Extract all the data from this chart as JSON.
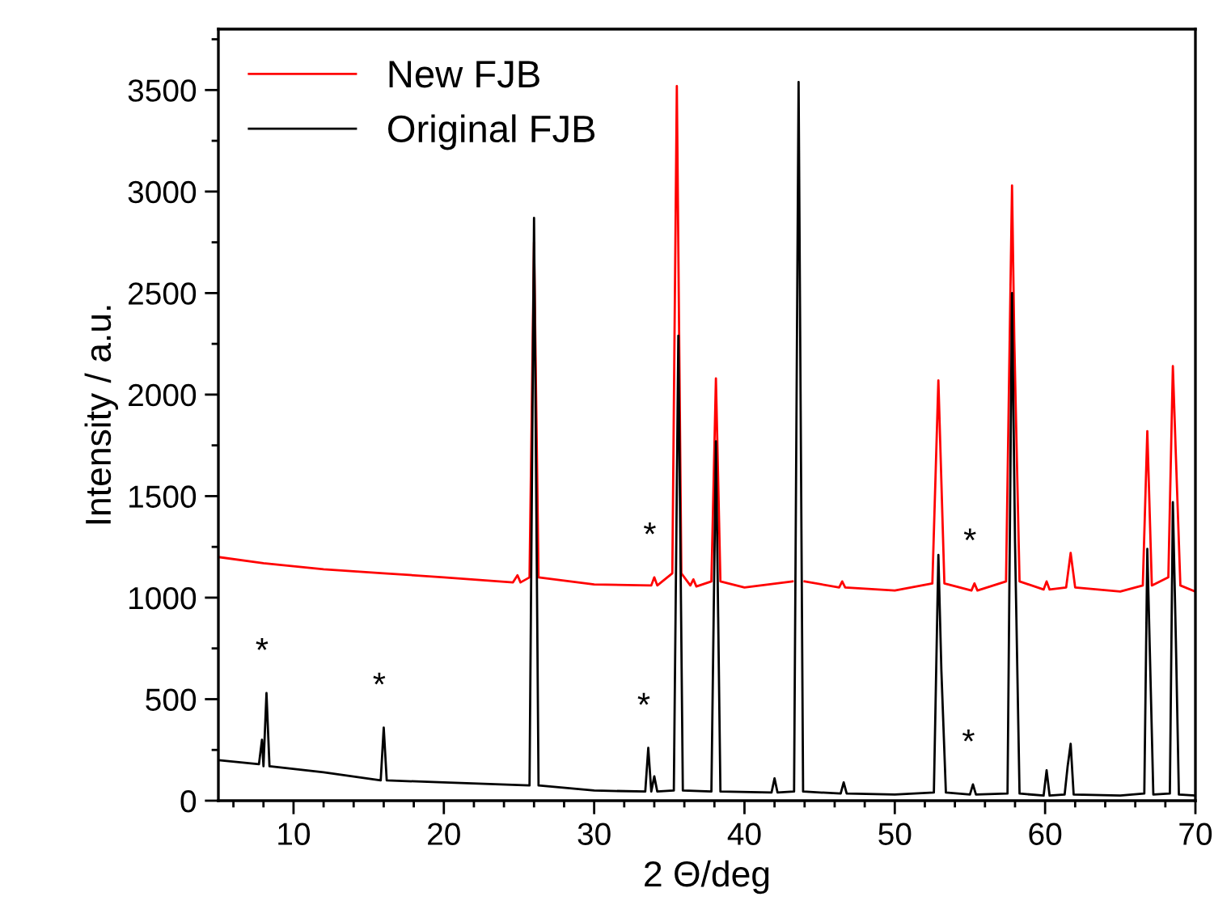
{
  "chart_data": {
    "type": "line",
    "xlabel": "2 Θ/deg",
    "ylabel": "Intensity / a.u.",
    "xlim": [
      5,
      70
    ],
    "ylim": [
      0,
      3800
    ],
    "xticks": [
      {
        "value": 6,
        "label": null
      },
      {
        "value": 8,
        "label": null
      },
      10,
      {
        "value": 12,
        "label": null
      },
      {
        "value": 14,
        "label": null
      },
      {
        "value": 16,
        "label": null
      },
      {
        "value": 18,
        "label": null
      },
      20,
      {
        "value": 22,
        "label": null
      },
      {
        "value": 24,
        "label": null
      },
      {
        "value": 26,
        "label": null
      },
      {
        "value": 28,
        "label": null
      },
      30,
      {
        "value": 32,
        "label": null
      },
      {
        "value": 34,
        "label": null
      },
      {
        "value": 36,
        "label": null
      },
      {
        "value": 38,
        "label": null
      },
      40,
      {
        "value": 42,
        "label": null
      },
      {
        "value": 44,
        "label": null
      },
      {
        "value": 46,
        "label": null
      },
      {
        "value": 48,
        "label": null
      },
      50,
      {
        "value": 52,
        "label": null
      },
      {
        "value": 54,
        "label": null
      },
      {
        "value": 56,
        "label": null
      },
      {
        "value": 58,
        "label": null
      },
      60,
      {
        "value": 62,
        "label": null
      },
      {
        "value": 64,
        "label": null
      },
      {
        "value": 66,
        "label": null
      },
      {
        "value": 68,
        "label": null
      },
      70
    ],
    "yticks": [
      0,
      {
        "value": 250,
        "label": null
      },
      500,
      {
        "value": 750,
        "label": null
      },
      1000,
      {
        "value": 1250,
        "label": null
      },
      1500,
      {
        "value": 1750,
        "label": null
      },
      2000,
      {
        "value": 2250,
        "label": null
      },
      2500,
      {
        "value": 2750,
        "label": null
      },
      3000,
      {
        "value": 3250,
        "label": null
      },
      3500,
      {
        "value": 3750,
        "label": null
      }
    ],
    "grid": false,
    "legend": "top left",
    "marker": "none",
    "line_style": "solid",
    "series": [
      {
        "name": "New FJB",
        "color": "#ff0000",
        "x": [
          5,
          8,
          12,
          16,
          20,
          24.6,
          24.9,
          25.1,
          25.7,
          26.0,
          26.3,
          30,
          33.8,
          34.0,
          34.2,
          35.2,
          35.5,
          35.8,
          36.4,
          36.6,
          36.8,
          37.8,
          38.1,
          38.4,
          40,
          43.2,
          43.6,
          44.0,
          46.3,
          46.5,
          46.7,
          50,
          52.5,
          52.9,
          53.3,
          55.1,
          55.3,
          55.5,
          57.4,
          57.8,
          57.95,
          58.3,
          59.9,
          60.1,
          60.3,
          61.4,
          61.7,
          62.0,
          65,
          66.5,
          66.8,
          67.1,
          68.2,
          68.5,
          68.7,
          69.0,
          70
        ],
        "values": [
          1200,
          1170,
          1140,
          1120,
          1100,
          1075,
          1110,
          1075,
          1100,
          2750,
          1100,
          1065,
          1060,
          1100,
          1060,
          1120,
          3520,
          1120,
          1060,
          1090,
          1055,
          1080,
          2080,
          1080,
          1050,
          1080,
          null,
          1080,
          1050,
          1080,
          1050,
          1035,
          1070,
          2070,
          1070,
          1035,
          1070,
          1035,
          1080,
          3030,
          2270,
          1080,
          1040,
          1080,
          1040,
          1050,
          1220,
          1050,
          1030,
          1060,
          1820,
          1060,
          1100,
          2140,
          1700,
          1060,
          1030
        ]
      },
      {
        "name": "Original FJB",
        "color": "#000000",
        "x": [
          5,
          7.7,
          7.9,
          8.0,
          8.2,
          8.4,
          12,
          15.8,
          16.0,
          16.2,
          20,
          25.7,
          26.0,
          26.3,
          30,
          33.4,
          33.6,
          33.8,
          34.0,
          34.2,
          35.3,
          35.6,
          35.9,
          37.8,
          38.1,
          38.4,
          41.8,
          42.0,
          42.2,
          43.3,
          43.6,
          43.9,
          46.4,
          46.6,
          46.8,
          50,
          52.6,
          52.9,
          53.1,
          53.4,
          55.0,
          55.2,
          55.4,
          57.5,
          57.8,
          58.0,
          58.3,
          59.9,
          60.1,
          60.3,
          61.3,
          61.5,
          61.7,
          61.9,
          65,
          66.6,
          66.8,
          67.0,
          67.2,
          68.3,
          68.5,
          68.7,
          68.9,
          70
        ],
        "values": [
          200,
          180,
          300,
          170,
          530,
          170,
          140,
          100,
          360,
          100,
          90,
          75,
          2870,
          75,
          50,
          45,
          260,
          45,
          120,
          45,
          50,
          2290,
          50,
          45,
          1770,
          45,
          40,
          110,
          40,
          45,
          3540,
          45,
          35,
          90,
          35,
          30,
          40,
          1210,
          640,
          40,
          30,
          80,
          30,
          35,
          2500,
          1270,
          35,
          25,
          150,
          25,
          30,
          170,
          280,
          30,
          25,
          35,
          1240,
          640,
          30,
          35,
          1470,
          790,
          30,
          25
        ]
      }
    ],
    "annotations": [
      {
        "text": "*",
        "x": 8.2,
        "y": 530
      },
      {
        "text": "*",
        "x": 16.0,
        "y": 360
      },
      {
        "text": "*",
        "x": 33.6,
        "y": 260
      },
      {
        "text": "*",
        "x": 34.0,
        "y": 1100
      },
      {
        "text": "*",
        "x": 55.3,
        "y": 1070
      },
      {
        "text": "*",
        "x": 55.2,
        "y": 80
      }
    ]
  }
}
